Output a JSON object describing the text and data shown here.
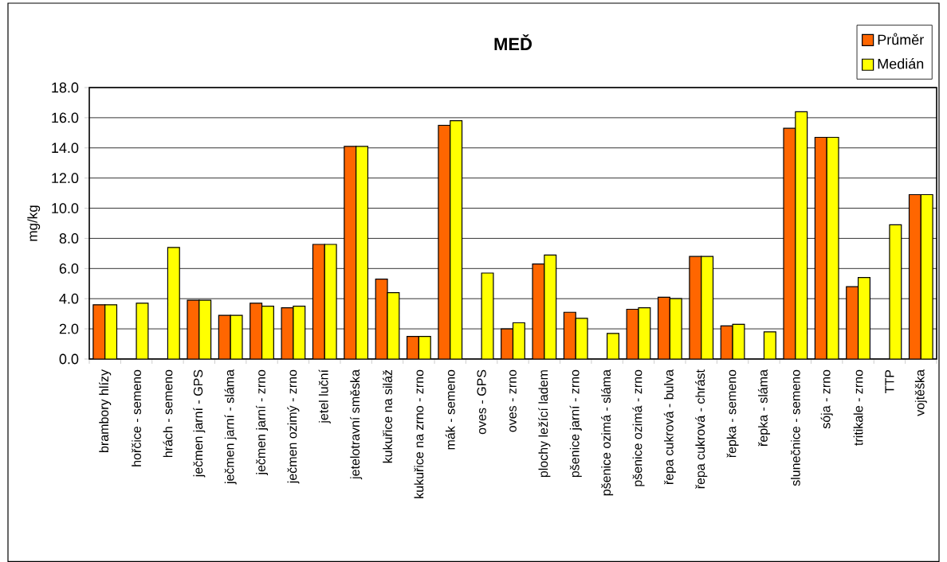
{
  "chart_data": {
    "type": "bar",
    "title": "MEĎ",
    "ylabel": "mg/kg",
    "categories": [
      "brambory hlízy",
      "hořčice - semeno",
      "hrách - semeno",
      "ječmen jarní - GPS",
      "ječmen jarní - sláma",
      "ječmen jarní - zrno",
      "ječmen ozimý - zrno",
      "jetel luční",
      "jetelotravní směska",
      "kukuřice na siláž",
      "kukuřice na zrno - zrno",
      "mák - semeno",
      "oves - GPS",
      "oves - zrno",
      "plochy ležící ladem",
      "pšenice jarní - zrno",
      "pšenice ozimá - sláma",
      "pšenice ozimá - zrno",
      "řepa cukrová - bulva",
      "řepa cukrová - chrást",
      "řepka - semeno",
      "řepka - sláma",
      "slunečnice - semeno",
      "sója - zrno",
      "tritikale - zrno",
      "TTP",
      "vojtěška"
    ],
    "series": [
      {
        "name": "Průměr",
        "color": "#ff6600",
        "values": [
          3.6,
          null,
          null,
          3.9,
          2.9,
          3.7,
          3.4,
          7.6,
          14.1,
          5.3,
          1.5,
          15.5,
          null,
          2.0,
          6.3,
          3.1,
          null,
          3.3,
          4.1,
          6.8,
          2.2,
          null,
          15.3,
          14.7,
          4.8,
          null,
          10.9
        ]
      },
      {
        "name": "Medián",
        "color": "#ffff00",
        "values": [
          3.6,
          3.7,
          7.4,
          3.9,
          2.9,
          3.5,
          3.5,
          7.6,
          14.1,
          4.4,
          1.5,
          15.8,
          5.7,
          2.4,
          6.9,
          2.7,
          1.7,
          3.4,
          4.0,
          6.8,
          2.3,
          1.8,
          16.4,
          14.7,
          5.4,
          8.9,
          10.9
        ]
      }
    ],
    "ylim": [
      0,
      18
    ],
    "yticks": [
      {
        "value": 0,
        "label": "0.0"
      },
      {
        "value": 2,
        "label": "2.0"
      },
      {
        "value": 4,
        "label": "4.0"
      },
      {
        "value": 6,
        "label": "6.0"
      },
      {
        "value": 8,
        "label": "8.0"
      },
      {
        "value": 10,
        "label": "10.0"
      },
      {
        "value": 12,
        "label": "12.0"
      },
      {
        "value": 14,
        "label": "14.0"
      },
      {
        "value": 16,
        "label": "16.0"
      },
      {
        "value": 18,
        "label": "18.0"
      }
    ],
    "grid": "y",
    "legend": "top right"
  }
}
